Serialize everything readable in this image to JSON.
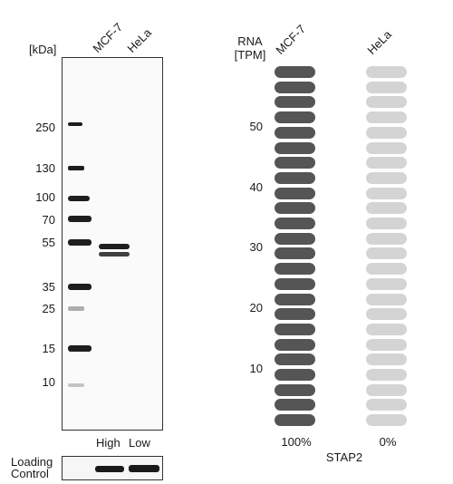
{
  "western_blot": {
    "unit_label": "[kDa]",
    "lanes": [
      "MCF-7",
      "HeLa"
    ],
    "markers": [
      "250",
      "130",
      "100",
      "70",
      "55",
      "35",
      "25",
      "15",
      "10"
    ],
    "bottom_labels": [
      "High",
      "Low"
    ],
    "loading_control_label": [
      "Loading",
      "Control"
    ]
  },
  "rna": {
    "unit_label": [
      "RNA",
      "[TPM]"
    ],
    "cell_lines": [
      "MCF-7",
      "HeLa"
    ],
    "y_ticks": [
      "50",
      "40",
      "30",
      "20",
      "10"
    ],
    "pill_count": 24,
    "colors": {
      "mcf7": "#555555",
      "hela": "#d4d4d4"
    },
    "percentages": [
      "100%",
      "0%"
    ],
    "gene": "STAP2"
  }
}
